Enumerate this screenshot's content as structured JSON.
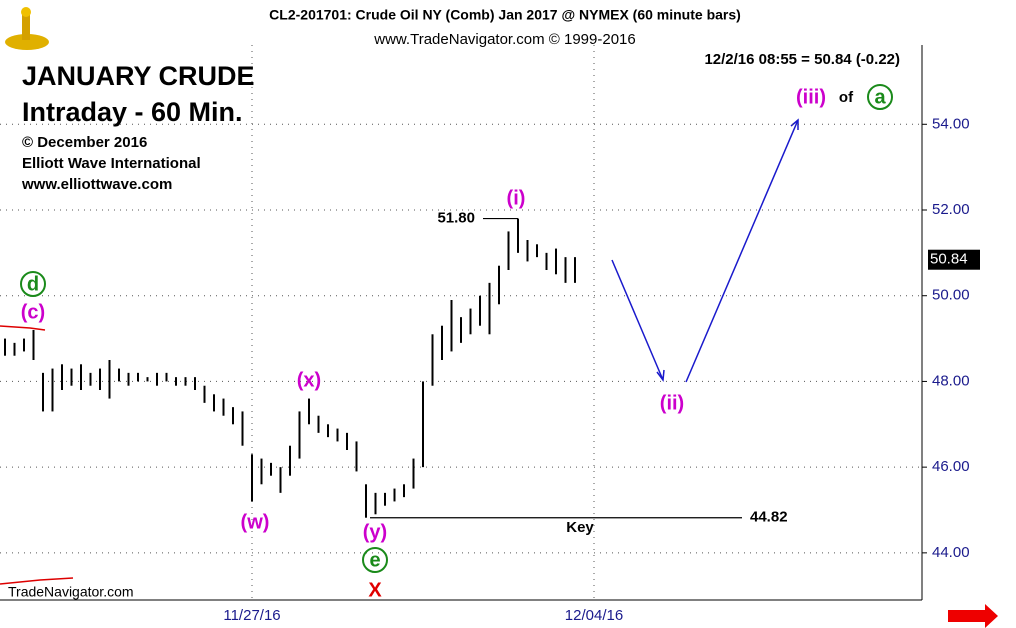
{
  "chart_data": {
    "type": "ohlc",
    "header": "CL2-201701:  Crude Oil NY (Comb) Jan 2017 @ NYMEX  (60 minute bars)",
    "copyright": "www.TradeNavigator.com © 1999-2016",
    "quote": "12/2/16 08:55 = 50.84 (-0.22)",
    "title": "JANUARY CRUDE",
    "subtitle": "Intraday - 60 Min.",
    "credits": [
      "© December 2016",
      "Elliott Wave International",
      "www.elliottwave.com"
    ],
    "footer": "TradeNavigator.com",
    "categories": [
      null,
      null,
      null,
      null,
      null,
      null,
      null,
      null,
      null,
      null,
      null,
      null,
      null,
      null,
      null,
      null,
      null,
      null,
      null,
      null,
      null,
      null,
      null,
      null,
      null,
      null,
      "11/27/16",
      null,
      null,
      null,
      null,
      null,
      null,
      null,
      null,
      null,
      null,
      null,
      null,
      null,
      null,
      null,
      null,
      null,
      null,
      null,
      null,
      null,
      null,
      null,
      null,
      null,
      null,
      null,
      null,
      null,
      null,
      null,
      null,
      null,
      null,
      null,
      "12/04/16"
    ],
    "high": [
      49.0,
      48.9,
      49.0,
      49.2,
      48.2,
      48.3,
      48.4,
      48.3,
      48.4,
      48.2,
      48.3,
      48.5,
      48.3,
      48.2,
      48.2,
      48.1,
      48.2,
      48.2,
      48.1,
      48.1,
      48.1,
      47.9,
      47.7,
      47.6,
      47.4,
      47.3,
      46.3,
      46.2,
      46.1,
      46.0,
      46.5,
      47.3,
      47.6,
      47.2,
      47.0,
      46.9,
      46.8,
      46.6,
      45.6,
      45.4,
      45.4,
      45.5,
      45.6,
      46.2,
      48.0,
      49.1,
      49.3,
      49.9,
      49.5,
      49.7,
      50.0,
      50.3,
      50.7,
      51.5,
      51.8,
      51.3,
      51.2,
      51.0,
      51.1,
      50.9,
      50.9,
      null,
      null
    ],
    "low": [
      48.6,
      48.6,
      48.7,
      48.5,
      47.3,
      47.3,
      47.8,
      47.9,
      47.8,
      47.9,
      47.8,
      47.6,
      48.0,
      47.9,
      48.0,
      48.0,
      47.9,
      48.0,
      47.9,
      47.9,
      47.8,
      47.5,
      47.3,
      47.2,
      47.0,
      46.5,
      45.2,
      45.6,
      45.8,
      45.4,
      45.8,
      46.2,
      47.0,
      46.8,
      46.7,
      46.6,
      46.4,
      45.9,
      44.82,
      44.9,
      45.1,
      45.2,
      45.3,
      45.5,
      46.0,
      47.9,
      48.5,
      48.7,
      48.9,
      49.1,
      49.3,
      49.1,
      49.8,
      50.6,
      51.0,
      50.8,
      50.9,
      50.6,
      50.5,
      50.3,
      50.3,
      null,
      null
    ],
    "color": "#000000",
    "ylim": [
      42.9,
      55.85
    ],
    "yticks": [
      {
        "value": 44,
        "label": "44.00"
      },
      {
        "value": 46,
        "label": "46.00"
      },
      {
        "value": 48,
        "label": "48.00"
      },
      {
        "value": 50,
        "label": "50.00"
      },
      {
        "value": 52,
        "label": "52.00"
      },
      {
        "value": 54,
        "label": "54.00"
      }
    ],
    "grid": true,
    "levels": [
      {
        "value": 51.8,
        "label": "51.80"
      },
      {
        "value": 44.82,
        "label": "44.82"
      }
    ],
    "last": {
      "value": 50.84,
      "label": "50.84"
    },
    "annotations": [
      "(c)",
      "d",
      "(w)",
      "(x)",
      "(y)",
      "e",
      "X",
      "(i)",
      "(ii)",
      "(iii)",
      "of",
      "a",
      "Key"
    ]
  }
}
